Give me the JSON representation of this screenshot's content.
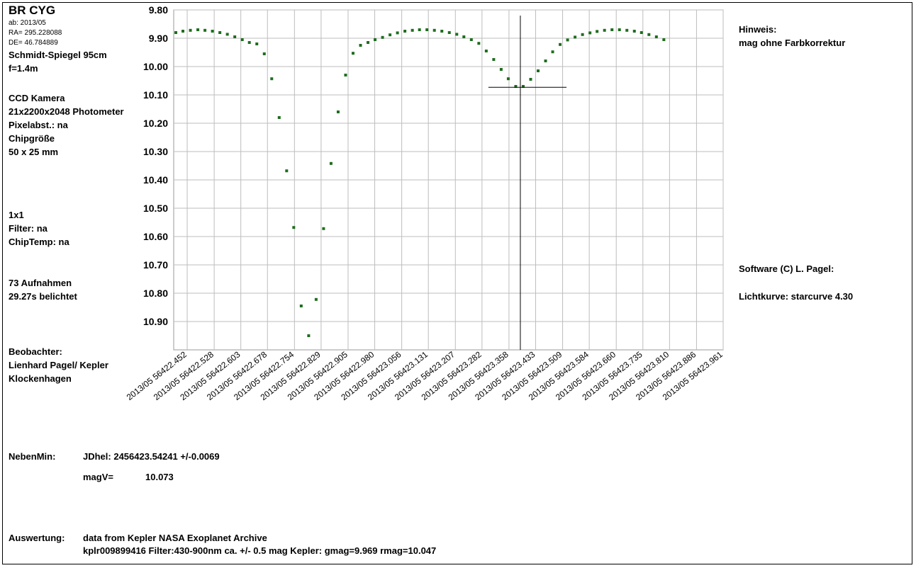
{
  "left_panel": {
    "object": "BR CYG",
    "ab": "ab: 2013/05",
    "ra": "RA= 295.228088",
    "de": "DE= 46.784889",
    "telescope": "Schmidt-Spiegel 95cm",
    "focal": "f=1.4m",
    "camera_1": "CCD Kamera",
    "camera_2": "21x2200x2048 Photometer",
    "pixel": "Pixelabst.: na",
    "chip_1": "Chipgröße",
    "chip_2": "50 x 25 mm",
    "binning": "1x1",
    "filter": "Filter: na",
    "chiptemp": "ChipTemp: na",
    "exposures_1": "73 Aufnahmen",
    "exposures_2": "29.27s belichtet",
    "observer_1": "Beobachter:",
    "observer_2": "Lienhard Pagel/ Kepler",
    "observer_3": "Klockenhagen"
  },
  "right_panel": {
    "note_1": "Hinweis:",
    "note_2": "mag ohne Farbkorrektur",
    "software": "Software (C) L. Pagel:",
    "lightcurve": "Lichtkurve:  starcurve 4.30"
  },
  "bottom": {
    "min_label": "NebenMin:",
    "jd": "JDhel: 2456423.54241  +/-0.0069",
    "mag_label": "magV=",
    "mag_value": "10.073",
    "analysis_label": "Auswertung:",
    "analysis_1": "data from Kepler NASA Exoplanet Archive",
    "analysis_2": "kplr009899416 Filter:430-900nm ca. +/- 0.5 mag  Kepler: gmag=9.969 rmag=10.047"
  },
  "chart_data": {
    "type": "scatter",
    "x_range": [
      56422.414,
      56423.961
    ],
    "ylim": [
      9.8,
      11.0
    ],
    "y_inverted": true,
    "grid": true,
    "y_ticks": [
      "9.80",
      "9.90",
      "10.00",
      "10.10",
      "10.20",
      "10.30",
      "10.40",
      "10.50",
      "10.60",
      "10.70",
      "10.80",
      "10.90"
    ],
    "x_ticks": [
      "2013/05  56422.452",
      "2013/05  56422.528",
      "2013/05  56422.603",
      "2013/05  56422.678",
      "2013/05  56422.754",
      "2013/05  56422.829",
      "2013/05  56422.905",
      "2013/05  56422.980",
      "2013/05  56423.056",
      "2013/05  56423.131",
      "2013/05  56423.207",
      "2013/05  56423.282",
      "2013/05  56423.358",
      "2013/05  56423.433",
      "2013/05  56423.509",
      "2013/05  56423.584",
      "2013/05  56423.660",
      "2013/05  56423.735",
      "2013/05  56423.810",
      "2013/05  56423.886",
      "2013/05  56423.961"
    ],
    "x_tick_values": [
      56422.452,
      56422.528,
      56422.603,
      56422.678,
      56422.754,
      56422.829,
      56422.905,
      56422.98,
      56423.056,
      56423.131,
      56423.207,
      56423.282,
      56423.358,
      56423.433,
      56423.509,
      56423.584,
      56423.66,
      56423.735,
      56423.81,
      56423.886,
      56423.961
    ],
    "marker_color": "#1e6e1e",
    "points": [
      [
        56422.42,
        9.88
      ],
      [
        56422.44,
        9.875
      ],
      [
        56422.461,
        9.872
      ],
      [
        56422.482,
        9.87
      ],
      [
        56422.502,
        9.872
      ],
      [
        56422.523,
        9.875
      ],
      [
        56422.544,
        9.88
      ],
      [
        56422.565,
        9.886
      ],
      [
        56422.586,
        9.895
      ],
      [
        56422.607,
        9.905
      ],
      [
        56422.627,
        9.915
      ],
      [
        56422.648,
        9.92
      ],
      [
        56422.669,
        9.955
      ],
      [
        56422.69,
        10.043
      ],
      [
        56422.711,
        10.18
      ],
      [
        56422.732,
        10.368
      ],
      [
        56422.752,
        10.568
      ],
      [
        56422.773,
        10.845
      ],
      [
        56422.794,
        10.95
      ],
      [
        56422.815,
        10.822
      ],
      [
        56422.836,
        10.572
      ],
      [
        56422.857,
        10.342
      ],
      [
        56422.877,
        10.16
      ],
      [
        56422.898,
        10.03
      ],
      [
        56422.919,
        9.953
      ],
      [
        56422.94,
        9.925
      ],
      [
        56422.961,
        9.915
      ],
      [
        56422.981,
        9.905
      ],
      [
        56423.002,
        9.897
      ],
      [
        56423.023,
        9.888
      ],
      [
        56423.044,
        9.881
      ],
      [
        56423.065,
        9.875
      ],
      [
        56423.086,
        9.872
      ],
      [
        56423.106,
        9.87
      ],
      [
        56423.127,
        9.87
      ],
      [
        56423.148,
        9.872
      ],
      [
        56423.169,
        9.875
      ],
      [
        56423.19,
        9.88
      ],
      [
        56423.211,
        9.886
      ],
      [
        56423.231,
        9.895
      ],
      [
        56423.252,
        9.905
      ],
      [
        56423.273,
        9.918
      ],
      [
        56423.294,
        9.945
      ],
      [
        56423.315,
        9.975
      ],
      [
        56423.336,
        10.01
      ],
      [
        56423.356,
        10.043
      ],
      [
        56423.377,
        10.07
      ],
      [
        56423.398,
        10.07
      ],
      [
        56423.419,
        10.045
      ],
      [
        56423.44,
        10.015
      ],
      [
        56423.461,
        9.98
      ],
      [
        56423.481,
        9.948
      ],
      [
        56423.502,
        9.922
      ],
      [
        56423.523,
        9.906
      ],
      [
        56423.544,
        9.896
      ],
      [
        56423.565,
        9.887
      ],
      [
        56423.586,
        9.881
      ],
      [
        56423.606,
        9.876
      ],
      [
        56423.627,
        9.872
      ],
      [
        56423.648,
        9.87
      ],
      [
        56423.669,
        9.87
      ],
      [
        56423.69,
        9.872
      ],
      [
        56423.711,
        9.875
      ],
      [
        56423.731,
        9.88
      ],
      [
        56423.752,
        9.887
      ],
      [
        56423.773,
        9.895
      ],
      [
        56423.794,
        9.905
      ]
    ],
    "minimum": {
      "x": 56423.39,
      "y": 10.073,
      "x_err_range": [
        56423.3,
        56423.52
      ]
    }
  }
}
